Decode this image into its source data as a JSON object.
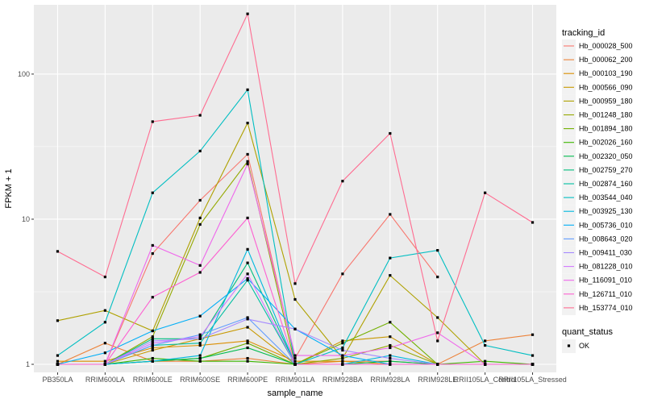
{
  "chart_data": {
    "type": "line",
    "xlabel": "sample_name",
    "ylabel": "FPKM + 1",
    "y_scale": "log10",
    "ylim": [
      0.88,
      300
    ],
    "y_ticks": [
      1,
      10,
      100
    ],
    "y_tick_labels": [
      "1",
      "10",
      "100"
    ],
    "grid": true,
    "legend_position": "right",
    "legend_title": "tracking_id",
    "legend2_title": "quant_status",
    "legend2_entries": [
      "OK"
    ],
    "categories": [
      "PB350LA",
      "RRIM600LA",
      "RRIM600LE",
      "RRIM600SE",
      "RRIM600PE",
      "RRIM901LA",
      "RRIM928BA",
      "RRIM928LA",
      "RRIM928LE",
      "RRII105LA_Control",
      "RRII105LA_Stressed"
    ],
    "series": [
      {
        "name": "Hb_000028_500",
        "color": "#F8766D",
        "values": [
          1.0,
          1.0,
          5.8,
          13.5,
          28,
          1.1,
          4.2,
          10.8,
          4.0,
          null,
          null
        ]
      },
      {
        "name": "Hb_000062_200",
        "color": "#EC8239",
        "values": [
          1.0,
          1.4,
          1.05,
          1.05,
          1.1,
          1.0,
          1.05,
          1.05,
          1.0,
          1.45,
          1.6
        ]
      },
      {
        "name": "Hb_000103_190",
        "color": "#DB8E00",
        "values": [
          1.05,
          1.05,
          1.3,
          1.35,
          1.45,
          1.05,
          1.05,
          1.0,
          1.0,
          1.0,
          1.0
        ]
      },
      {
        "name": "Hb_000566_090",
        "color": "#C79800",
        "values": [
          1.0,
          1.0,
          1.25,
          1.5,
          1.8,
          1.0,
          1.45,
          1.55,
          1.0,
          1.0,
          1.0
        ]
      },
      {
        "name": "Hb_000959_180",
        "color": "#AFA100",
        "values": [
          2.0,
          2.35,
          1.7,
          10.2,
          46,
          2.8,
          1.1,
          4.1,
          2.1,
          1.0,
          1.0
        ]
      },
      {
        "name": "Hb_001248_180",
        "color": "#94A900",
        "values": [
          1.0,
          1.0,
          1.55,
          9.2,
          25,
          1.0,
          1.1,
          1.35,
          1.0,
          1.0,
          1.0
        ]
      },
      {
        "name": "Hb_001894_180",
        "color": "#72B000",
        "values": [
          1.0,
          1.0,
          1.05,
          1.1,
          1.4,
          1.0,
          1.4,
          1.95,
          1.0,
          1.0,
          1.0
        ]
      },
      {
        "name": "Hb_002026_160",
        "color": "#3DB700",
        "values": [
          1.0,
          1.0,
          1.1,
          1.05,
          1.05,
          1.0,
          1.0,
          1.0,
          1.0,
          1.05,
          1.0
        ]
      },
      {
        "name": "Hb_002320_050",
        "color": "#00BB4E",
        "values": [
          1.0,
          1.0,
          1.05,
          1.1,
          1.3,
          1.0,
          1.0,
          1.05,
          1.0,
          1.0,
          1.0
        ]
      },
      {
        "name": "Hb_002759_270",
        "color": "#00BE7D",
        "values": [
          1.0,
          1.0,
          1.5,
          1.5,
          5.0,
          1.0,
          1.0,
          1.0,
          1.0,
          1.0,
          1.0
        ]
      },
      {
        "name": "Hb_002874_160",
        "color": "#00BFA1",
        "values": [
          1.0,
          1.0,
          1.35,
          1.4,
          3.8,
          1.0,
          1.0,
          1.0,
          1.0,
          1.0,
          1.0
        ]
      },
      {
        "name": "Hb_003544_040",
        "color": "#00BEC2",
        "values": [
          1.15,
          1.95,
          15.2,
          29.5,
          78,
          1.0,
          1.3,
          5.4,
          6.1,
          1.35,
          1.15
        ]
      },
      {
        "name": "Hb_003925_130",
        "color": "#00B8DE",
        "values": [
          1.0,
          1.0,
          1.05,
          1.15,
          6.2,
          1.0,
          1.0,
          1.15,
          1.0,
          1.0,
          1.0
        ]
      },
      {
        "name": "Hb_005736_010",
        "color": "#00AEF7",
        "values": [
          1.0,
          1.2,
          1.7,
          2.15,
          3.9,
          1.75,
          1.15,
          1.0,
          1.0,
          1.0,
          1.0
        ]
      },
      {
        "name": "Hb_008643_020",
        "color": "#619CFF",
        "values": [
          1.0,
          1.0,
          1.35,
          1.6,
          2.1,
          1.0,
          1.0,
          1.0,
          1.0,
          1.0,
          1.0
        ]
      },
      {
        "name": "Hb_009411_030",
        "color": "#A58AFF",
        "values": [
          1.0,
          1.0,
          1.45,
          1.5,
          2.05,
          1.75,
          1.25,
          1.1,
          1.0,
          1.0,
          1.0
        ]
      },
      {
        "name": "Hb_081228_010",
        "color": "#D277FF",
        "values": [
          1.0,
          1.0,
          1.4,
          1.55,
          4.2,
          1.0,
          1.0,
          1.0,
          1.0,
          1.0,
          1.0
        ]
      },
      {
        "name": "Hb_116091_010",
        "color": "#EF67EB",
        "values": [
          1.0,
          1.0,
          6.6,
          4.8,
          24,
          1.15,
          1.15,
          1.3,
          1.65,
          1.0,
          1.0
        ]
      },
      {
        "name": "Hb_126711_010",
        "color": "#FD61D1",
        "values": [
          1.0,
          1.0,
          2.9,
          4.3,
          10.2,
          1.0,
          1.0,
          1.0,
          1.0,
          1.0,
          1.0
        ]
      },
      {
        "name": "Hb_153774_010",
        "color": "#FF6C91",
        "values": [
          6.0,
          4.0,
          47,
          52,
          260,
          3.6,
          18.3,
          39,
          1.45,
          15.2,
          9.5
        ]
      }
    ]
  }
}
